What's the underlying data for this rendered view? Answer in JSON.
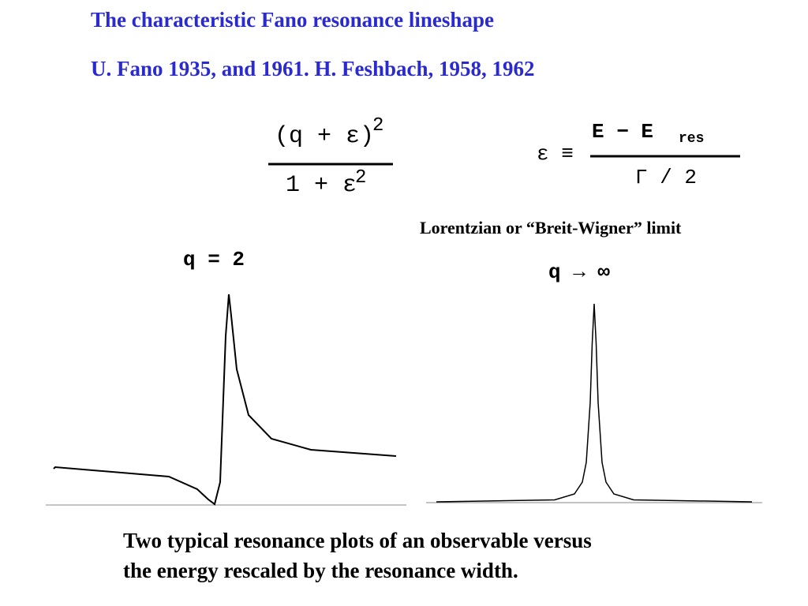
{
  "slide": {
    "title": "The characteristic Fano resonance lineshape",
    "subtitle": "U. Fano 1935, and 1961.  H. Feshbach, 1958, 1962",
    "formula": {
      "numerator": "(q + ε)",
      "numerator_power": "2",
      "denominator": "1 + ε",
      "denominator_power": "2"
    },
    "definition": {
      "lhs": "ε ≡",
      "numerator": "E − E",
      "subscript": "res",
      "denominator": "Γ / 2"
    },
    "lorentz_caption": "Lorentzian or “Breit-Wigner” limit",
    "left_label": "q = 2",
    "right_label": "q → ∞",
    "caption": [
      "Two typical resonance plots of an observable versus",
      "the energy rescaled by the resonance width."
    ]
  }
}
